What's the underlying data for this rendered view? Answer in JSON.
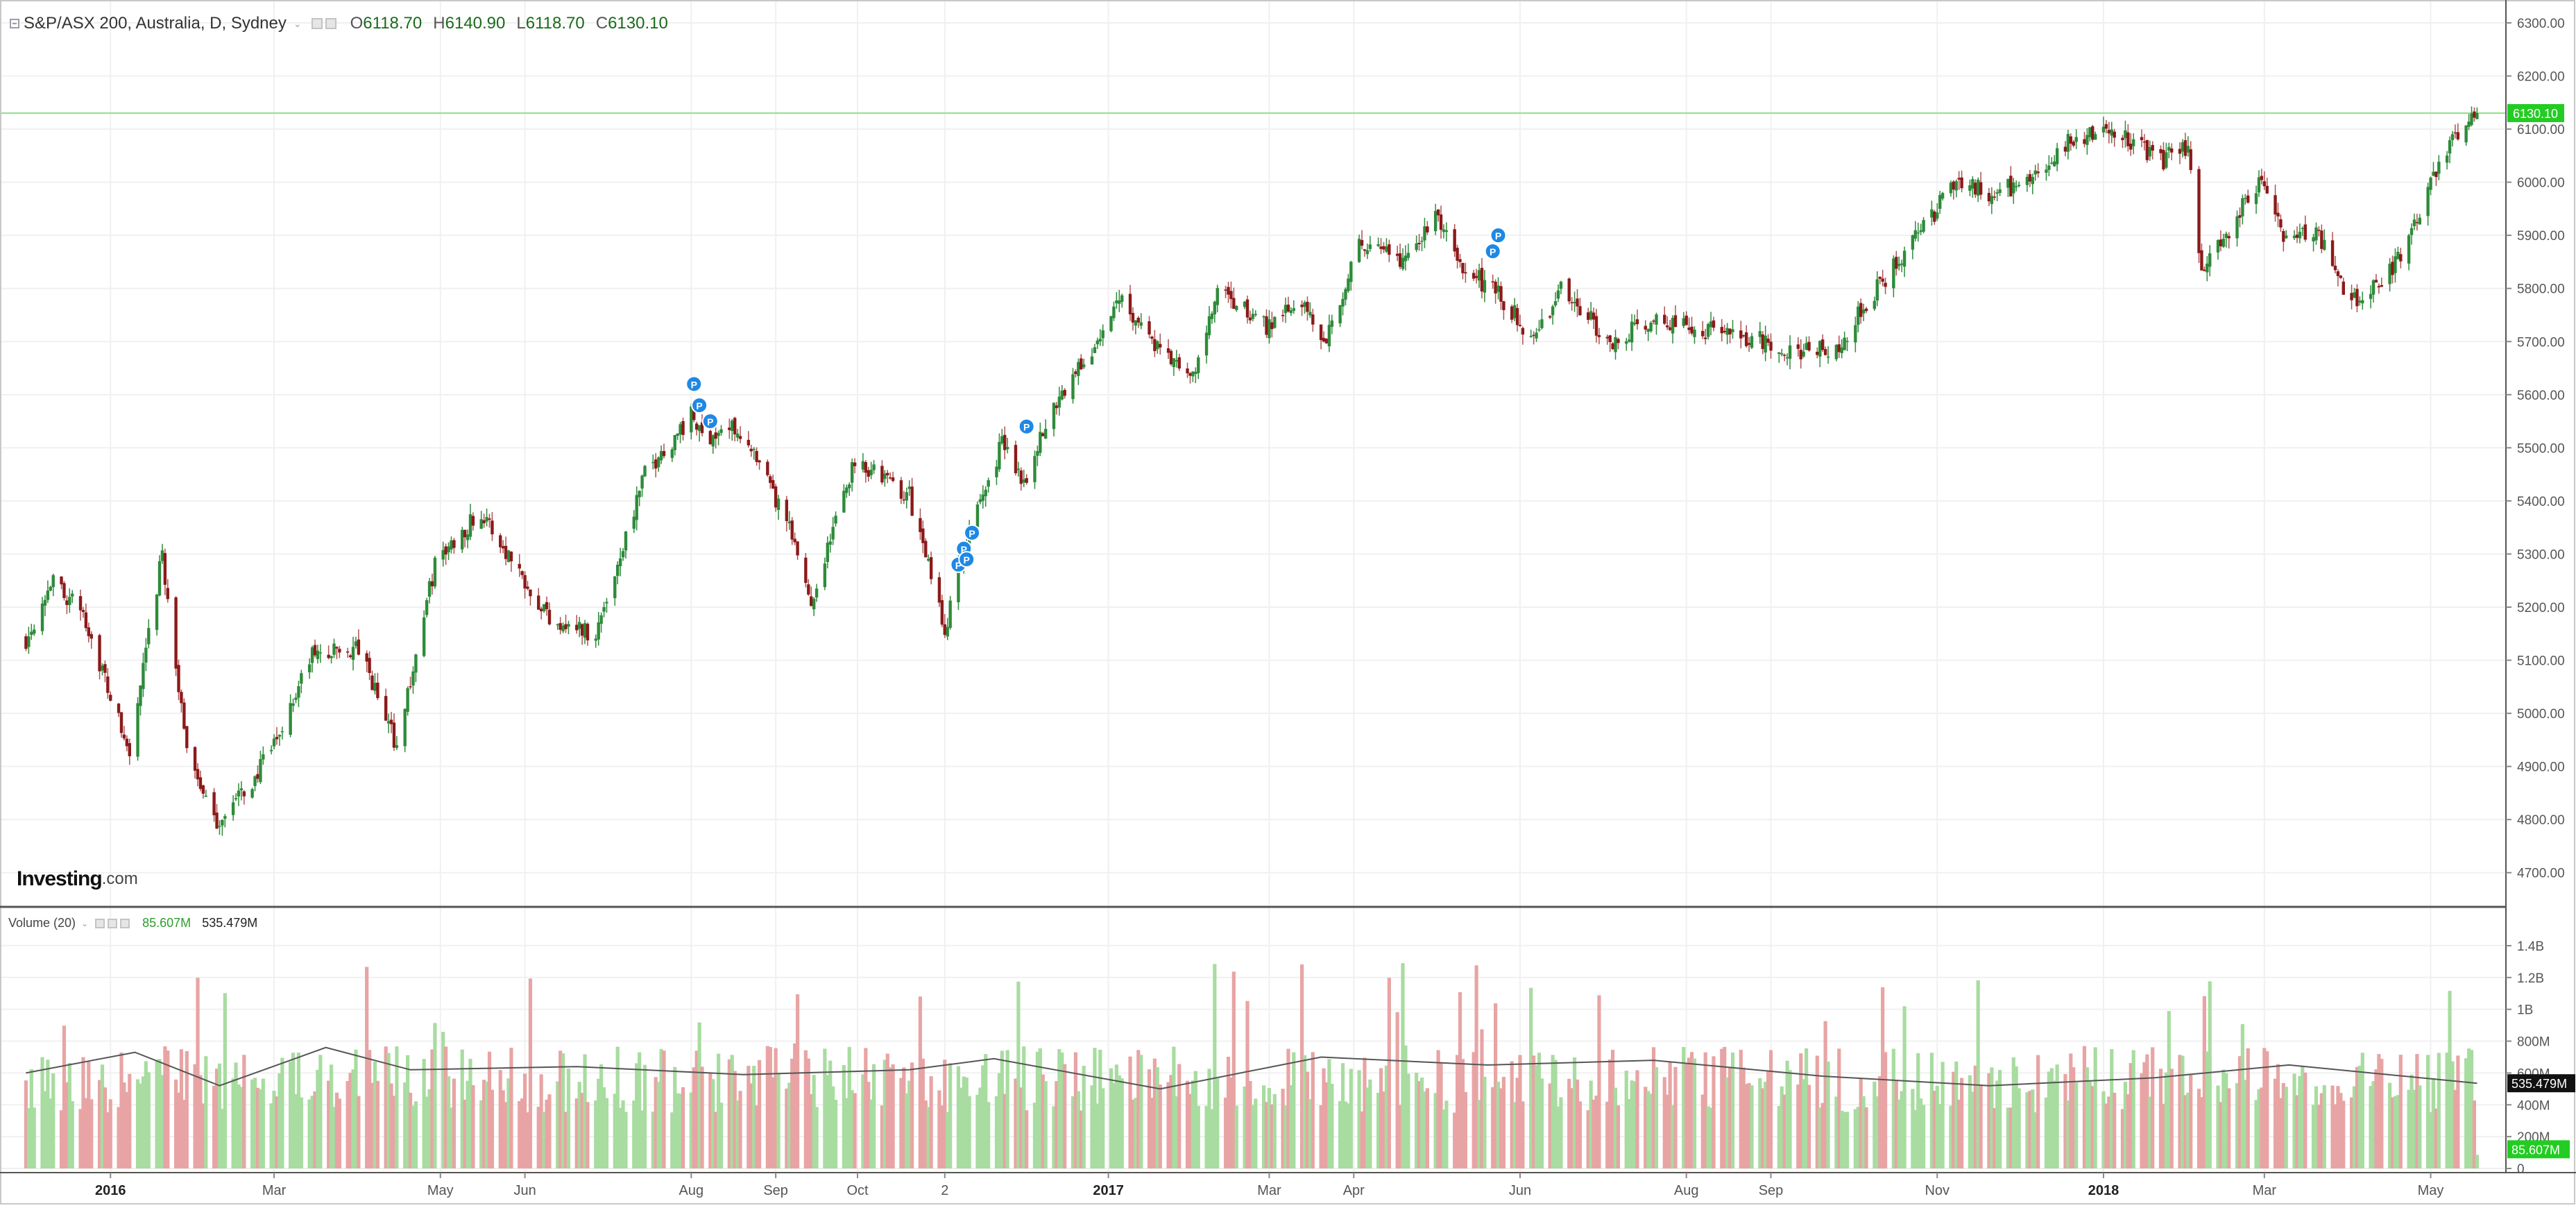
{
  "header": {
    "symbol": "S&P/ASX 200, Australia, D, Sydney",
    "open_label": "O",
    "open_value": "6118.70",
    "high_label": "H",
    "high_value": "6140.90",
    "low_label": "L",
    "low_value": "6118.70",
    "close_label": "C",
    "close_value": "6130.10"
  },
  "volume_header": {
    "title": "Volume (20)",
    "value_volume": "85.607M",
    "value_ma": "535.479M"
  },
  "watermark": {
    "brand": "Investing",
    "suffix": ".com"
  },
  "price_axis": {
    "ticks": [
      "6300.00",
      "6200.00",
      "6100.00",
      "6000.00",
      "5900.00",
      "5800.00",
      "5700.00",
      "5600.00",
      "5500.00",
      "5400.00",
      "5300.00",
      "5200.00",
      "5100.00",
      "5000.00",
      "4900.00",
      "4800.00",
      "4700.00"
    ],
    "last_price_label": "6130.10"
  },
  "volume_axis": {
    "ticks": [
      "1.4B",
      "1.2B",
      "1B",
      "800M",
      "600M",
      "400M",
      "200M",
      "0"
    ],
    "ma_label": "535.479M",
    "volume_label": "85.607M"
  },
  "time_axis": {
    "labels": [
      "2016",
      "Mar",
      "May",
      "Jun",
      "Aug",
      "Sep",
      "Oct",
      "2",
      "2017",
      "Mar",
      "Apr",
      "Jun",
      "Aug",
      "Sep",
      "Nov",
      "2018",
      "Mar",
      "May"
    ],
    "bold": [
      "2016",
      "2017",
      "2018"
    ]
  },
  "colors": {
    "up": "#2e8b3a",
    "down": "#8b1a1a",
    "vol_up": "#a8dca0",
    "vol_down": "#e8a4a4",
    "last_line": "#8fe08a",
    "last_badge": "#22cc22",
    "marker": "#1e88e5",
    "ma_line": "#555555",
    "grid": "#f0f0f0"
  },
  "chart_data": {
    "type": "candlestick",
    "title": "S&P/ASX 200, Australia, D, Sydney",
    "timeframe": "D",
    "x_range": [
      "2015-12",
      "2018-05"
    ],
    "ylim": [
      4650,
      6330
    ],
    "price_keypoints": [
      {
        "date": "2015-12-01",
        "close": 5140
      },
      {
        "date": "2015-12-10",
        "close": 5250
      },
      {
        "date": "2015-12-22",
        "close": 5190
      },
      {
        "date": "2016-01-08",
        "close": 4920
      },
      {
        "date": "2016-01-20",
        "close": 5300
      },
      {
        "date": "2016-01-28",
        "close": 4960
      },
      {
        "date": "2016-02-08",
        "close": 4790
      },
      {
        "date": "2016-02-22",
        "close": 4870
      },
      {
        "date": "2016-03-01",
        "close": 4940
      },
      {
        "date": "2016-03-15",
        "close": 5110
      },
      {
        "date": "2016-04-01",
        "close": 5120
      },
      {
        "date": "2016-04-15",
        "close": 4940
      },
      {
        "date": "2016-04-29",
        "close": 5280
      },
      {
        "date": "2016-05-15",
        "close": 5380
      },
      {
        "date": "2016-05-30",
        "close": 5270
      },
      {
        "date": "2016-06-10",
        "close": 5180
      },
      {
        "date": "2016-06-27",
        "close": 5150
      },
      {
        "date": "2016-07-15",
        "close": 5450
      },
      {
        "date": "2016-08-01",
        "close": 5560
      },
      {
        "date": "2016-08-05",
        "close": 5520
      },
      {
        "date": "2016-08-18",
        "close": 5540
      },
      {
        "date": "2016-09-05",
        "close": 5360
      },
      {
        "date": "2016-09-14",
        "close": 5210
      },
      {
        "date": "2016-09-30",
        "close": 5480
      },
      {
        "date": "2016-10-20",
        "close": 5410
      },
      {
        "date": "2016-11-02",
        "close": 5160
      },
      {
        "date": "2016-11-09",
        "close": 5310
      },
      {
        "date": "2016-11-23",
        "close": 5510
      },
      {
        "date": "2016-12-01",
        "close": 5440
      },
      {
        "date": "2016-12-14",
        "close": 5600
      },
      {
        "date": "2016-12-30",
        "close": 5710
      },
      {
        "date": "2017-01-05",
        "close": 5790
      },
      {
        "date": "2017-01-20",
        "close": 5680
      },
      {
        "date": "2017-02-01",
        "close": 5630
      },
      {
        "date": "2017-02-10",
        "close": 5790
      },
      {
        "date": "2017-02-28",
        "close": 5730
      },
      {
        "date": "2017-03-10",
        "close": 5780
      },
      {
        "date": "2017-03-22",
        "close": 5710
      },
      {
        "date": "2017-04-03",
        "close": 5880
      },
      {
        "date": "2017-04-20",
        "close": 5850
      },
      {
        "date": "2017-05-01",
        "close": 5940
      },
      {
        "date": "2017-05-10",
        "close": 5840
      },
      {
        "date": "2017-05-22",
        "close": 5800
      },
      {
        "date": "2017-06-07",
        "close": 5700
      },
      {
        "date": "2017-06-15",
        "close": 5800
      },
      {
        "date": "2017-07-05",
        "close": 5700
      },
      {
        "date": "2017-07-20",
        "close": 5740
      },
      {
        "date": "2017-08-10",
        "close": 5720
      },
      {
        "date": "2017-08-30",
        "close": 5700
      },
      {
        "date": "2017-09-12",
        "close": 5680
      },
      {
        "date": "2017-09-25",
        "close": 5690
      },
      {
        "date": "2017-10-10",
        "close": 5800
      },
      {
        "date": "2017-10-25",
        "close": 5900
      },
      {
        "date": "2017-11-08",
        "close": 6000
      },
      {
        "date": "2017-11-22",
        "close": 5980
      },
      {
        "date": "2017-12-08",
        "close": 6010
      },
      {
        "date": "2017-12-20",
        "close": 6080
      },
      {
        "date": "2018-01-03",
        "close": 6100
      },
      {
        "date": "2018-01-10",
        "close": 6080
      },
      {
        "date": "2018-01-22",
        "close": 6040
      },
      {
        "date": "2018-02-01",
        "close": 6070
      },
      {
        "date": "2018-02-06",
        "close": 5820
      },
      {
        "date": "2018-02-20",
        "close": 5950
      },
      {
        "date": "2018-03-01",
        "close": 6010
      },
      {
        "date": "2018-03-08",
        "close": 5900
      },
      {
        "date": "2018-03-20",
        "close": 5910
      },
      {
        "date": "2018-04-02",
        "close": 5770
      },
      {
        "date": "2018-04-10",
        "close": 5800
      },
      {
        "date": "2018-04-20",
        "close": 5860
      },
      {
        "date": "2018-04-30",
        "close": 5980
      },
      {
        "date": "2018-05-10",
        "close": 6090
      },
      {
        "date": "2018-05-18",
        "close": 6130.1
      }
    ],
    "last_bar": {
      "open": 6118.7,
      "high": 6140.9,
      "low": 6118.7,
      "close": 6130.1
    },
    "volume": {
      "ylim": [
        0,
        1500000000
      ],
      "ma_period": 20,
      "ma_keypoints": [
        {
          "date": "2015-12-01",
          "value": 600000000
        },
        {
          "date": "2016-01-10",
          "value": 730000000
        },
        {
          "date": "2016-02-10",
          "value": 520000000
        },
        {
          "date": "2016-03-20",
          "value": 760000000
        },
        {
          "date": "2016-04-20",
          "value": 620000000
        },
        {
          "date": "2016-06-20",
          "value": 640000000
        },
        {
          "date": "2016-08-20",
          "value": 590000000
        },
        {
          "date": "2016-10-20",
          "value": 620000000
        },
        {
          "date": "2016-11-20",
          "value": 690000000
        },
        {
          "date": "2017-01-20",
          "value": 500000000
        },
        {
          "date": "2017-03-20",
          "value": 700000000
        },
        {
          "date": "2017-05-20",
          "value": 650000000
        },
        {
          "date": "2017-07-20",
          "value": 680000000
        },
        {
          "date": "2017-09-20",
          "value": 580000000
        },
        {
          "date": "2017-11-20",
          "value": 520000000
        },
        {
          "date": "2018-01-20",
          "value": 570000000
        },
        {
          "date": "2018-03-10",
          "value": 650000000
        },
        {
          "date": "2018-05-18",
          "value": 535479000
        }
      ],
      "last_volume": 85607000,
      "last_ma": 535479000
    }
  }
}
